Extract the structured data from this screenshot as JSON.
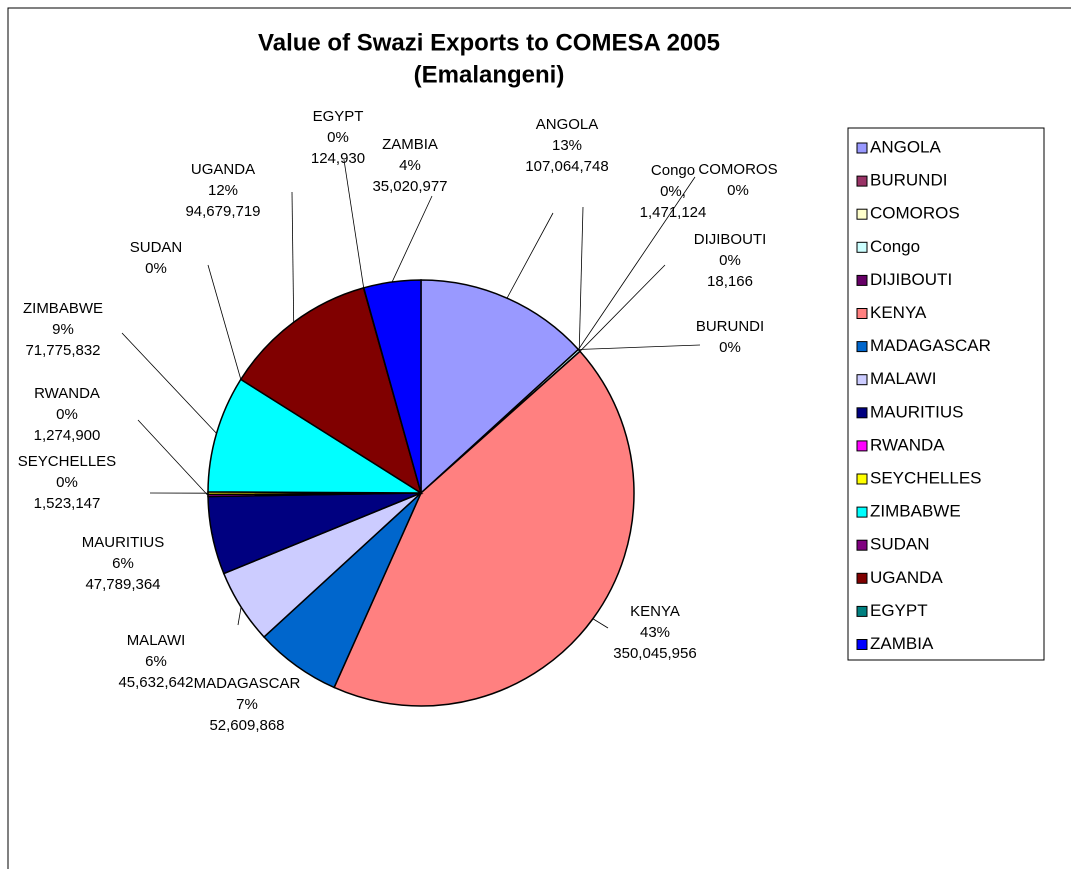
{
  "chart_data": {
    "type": "pie",
    "title": [
      "Value of Swazi Exports to COMESA 2005",
      "(Emalangeni)"
    ],
    "categories": [
      "ANGOLA",
      "BURUNDI",
      "COMOROS",
      "Congo",
      "DIJIBOUTI",
      "KENYA",
      "MADAGASCAR",
      "MALAWI",
      "MAURITIUS",
      "RWANDA",
      "SEYCHELLES",
      "ZIMBABWE",
      "SUDAN",
      "UGANDA",
      "EGYPT",
      "ZAMBIA"
    ],
    "values": [
      107064748,
      0,
      0,
      1471124,
      18166,
      350045956,
      52609868,
      45632642,
      47789364,
      1274900,
      1523147,
      71775832,
      0,
      94679719,
      124930,
      35020977
    ],
    "value_labels": [
      "107,064,748",
      null,
      null,
      "1,471,124",
      "18,166",
      "350,045,956",
      "52,609,868",
      "45,632,642",
      "47,789,364",
      "1,274,900",
      "1,523,147",
      "71,775,832",
      null,
      "94,679,719",
      "124,930",
      "35,020,977"
    ],
    "percent_labels": [
      "13%",
      "0%",
      "0%",
      "0%,",
      "0%",
      "43%",
      "7%",
      "6%",
      "6%",
      "0%",
      "0%",
      "9%",
      "0%",
      "12%",
      "0%",
      "4%"
    ],
    "colors": [
      "#9999ff",
      "#993366",
      "#ffffcc",
      "#ccffff",
      "#660066",
      "#ff8080",
      "#0066cc",
      "#ccccff",
      "#000080",
      "#ff00ff",
      "#ffff00",
      "#00ffff",
      "#800080",
      "#800000",
      "#008080",
      "#0000ff"
    ],
    "legend": "right"
  }
}
